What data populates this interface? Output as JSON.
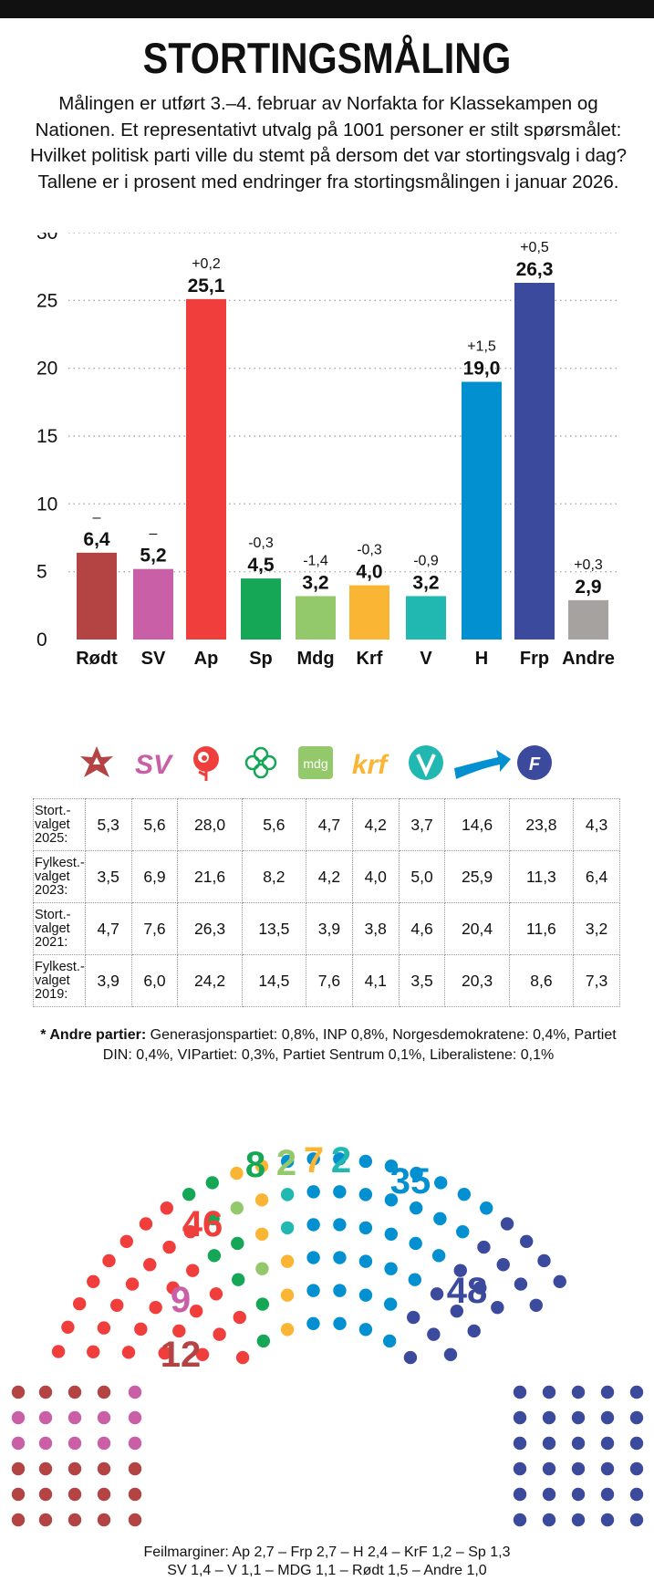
{
  "header": {
    "title": "STORTINGSMÅLING",
    "intro": "Målingen er utført 3.–4. februar av Norfakta for Klassekampen og Nationen. Et representativt utvalg på 1001 personer er stilt spørsmålet: Hvilket politisk parti ville du stemt på dersom det var stortingsvalg i dag? Tallene er i prosent med endringer fra stortingsmålingen i januar 2026."
  },
  "chart_data": {
    "type": "bar",
    "title": "STORTINGSMÅLING",
    "categories": [
      "Rødt",
      "SV",
      "Ap",
      "Sp",
      "Mdg",
      "Krf",
      "V",
      "H",
      "Frp",
      "Andre"
    ],
    "values": [
      6.4,
      5.2,
      25.1,
      4.5,
      3.2,
      4.0,
      3.2,
      19.0,
      26.3,
      2.9
    ],
    "value_labels": [
      "6,4",
      "5,2",
      "25,1",
      "4,5",
      "3,2",
      "4,0",
      "3,2",
      "19,0",
      "26,3",
      "2,9"
    ],
    "changes": [
      "–",
      "–",
      "+0,2",
      "-0,3",
      "-1,4",
      "-0,3",
      "-0,9",
      "+1,5",
      "+0,5",
      "+0,3"
    ],
    "colors": [
      "#b44444",
      "#c95fa6",
      "#ef3e3b",
      "#15a656",
      "#93c96a",
      "#fbb534",
      "#20b8b0",
      "#0290d1",
      "#3b4a9c",
      "#a5a29f"
    ],
    "ylim": [
      0,
      30
    ],
    "yticks": [
      0,
      5,
      10,
      15,
      20,
      25,
      30
    ],
    "xlabel": "",
    "ylabel": "",
    "grid": true
  },
  "logos": {
    "sv": "SV",
    "mdg": "mdg",
    "krf": "krf"
  },
  "history": {
    "rows": [
      {
        "label": [
          "Stort.-",
          "valget",
          "2025:"
        ],
        "values": [
          "5,3",
          "5,6",
          "28,0",
          "5,6",
          "4,7",
          "4,2",
          "3,7",
          "14,6",
          "23,8",
          "4,3"
        ]
      },
      {
        "label": [
          "Fylkest.-",
          "valget",
          "2023:"
        ],
        "values": [
          "3,5",
          "6,9",
          "21,6",
          "8,2",
          "4,2",
          "4,0",
          "5,0",
          "25,9",
          "11,3",
          "6,4"
        ]
      },
      {
        "label": [
          "Stort.-",
          "valget",
          "2021:"
        ],
        "values": [
          "4,7",
          "7,6",
          "26,3",
          "13,5",
          "3,9",
          "3,8",
          "4,6",
          "20,4",
          "11,6",
          "3,2"
        ]
      },
      {
        "label": [
          "Fylkest.-",
          "valget",
          "2019:"
        ],
        "values": [
          "3,9",
          "6,0",
          "24,2",
          "14,5",
          "7,6",
          "4,1",
          "3,5",
          "20,3",
          "8,6",
          "7,3"
        ]
      }
    ]
  },
  "note": {
    "head": "* Andre partier:",
    "body": " Generasjonspartiet: 0,8%, INP 0,8%, Norgesdemokratene: 0,4%, Partiet DIN: 0,4%, VIPartiet: 0,3%, Partiet Sentrum 0,1%, Liberalistene: 0,1%"
  },
  "seats": {
    "rodt": "12",
    "sv": "9",
    "ap": "46",
    "sp": "8",
    "mdg": "2",
    "krf": "7",
    "v": "2",
    "h": "35",
    "frp": "48"
  },
  "margins": {
    "line1": "Feilmarginer: Ap 2,7 – Frp 2,7 – H 2,4 – KrF 1,2 – Sp 1,3",
    "line2": "SV 1,4 – V 1,1 – MDG 1,1 – Rødt 1,5 – Andre 1,0"
  }
}
